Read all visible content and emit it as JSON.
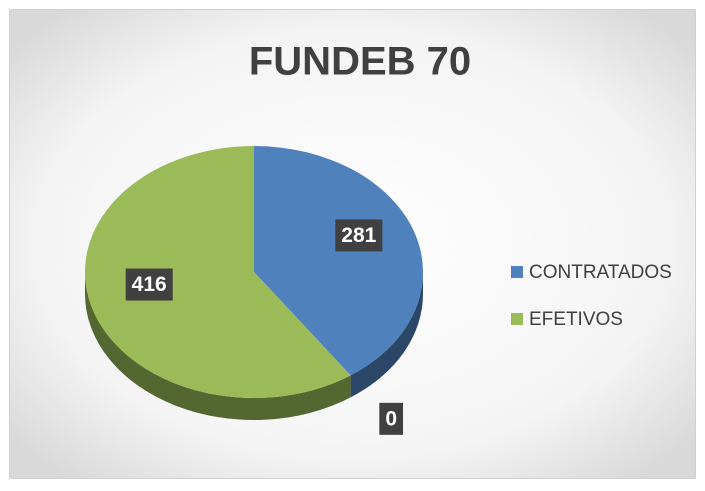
{
  "chart_data": {
    "type": "pie",
    "title": "FUNDEB 70",
    "categories": [
      "CONTRATADOS",
      null,
      "EFETIVOS"
    ],
    "values": [
      281,
      0,
      416
    ],
    "colors": [
      "#4f81bd",
      "#c0504d",
      "#9bbb59"
    ],
    "legend": "right"
  }
}
